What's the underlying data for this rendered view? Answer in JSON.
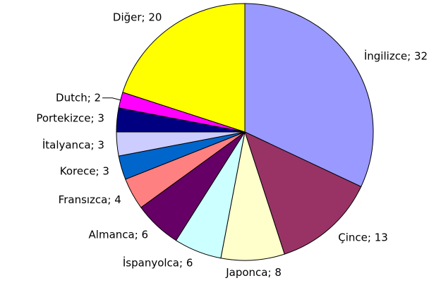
{
  "chart_data": {
    "type": "pie",
    "values": [
      32,
      13,
      8,
      6,
      6,
      4,
      3,
      3,
      3,
      2,
      20
    ],
    "value_labels": [
      "İngilizce; 32",
      "Çince; 13",
      "Japonca; 8",
      "İspanyolca; 6",
      "Almanca; 6",
      "Fransızca; 4",
      "Korece; 3",
      "İtalyanca; 3",
      "Portekizce; 3",
      "Dutch; 2",
      "Diğer; 20"
    ],
    "colors": [
      "#9999ff",
      "#993366",
      "#ffffcc",
      "#ccffff",
      "#660066",
      "#ff8080",
      "#0066cc",
      "#ccccff",
      "#000080",
      "#ff00ff",
      "#ffff00"
    ]
  }
}
